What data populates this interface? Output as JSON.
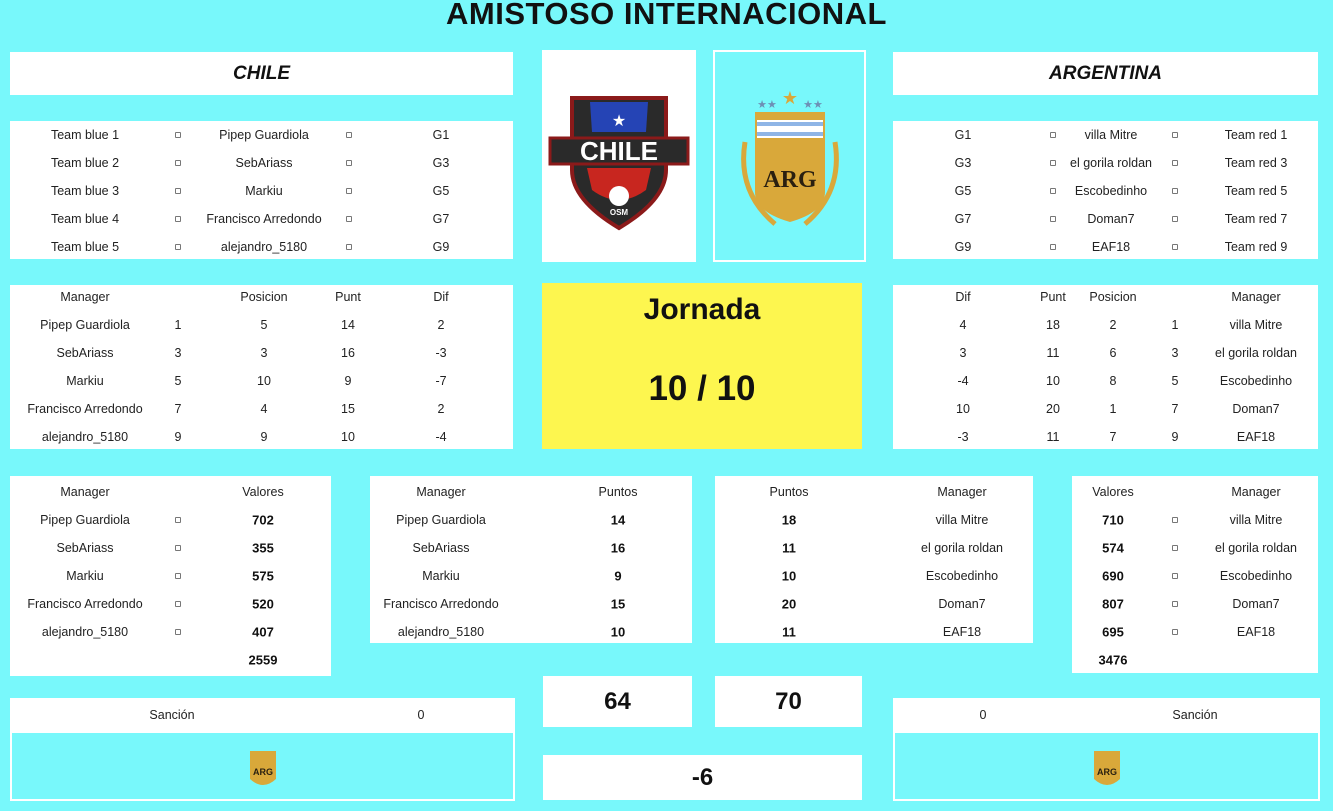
{
  "title": "AMISTOSO INTERNACIONAL",
  "home": {
    "name": "CHILE",
    "logo_text": "CHILE",
    "logo_sub": "OSM"
  },
  "away": {
    "name": "ARGENTINA",
    "logo_text": "ARG"
  },
  "colors": {
    "background": "#78f8fb",
    "jornada": "#fdf64f",
    "panel": "#ffffff"
  },
  "tables": {
    "home_matchups": {
      "rows": [
        [
          "Team blue 1",
          "□",
          "Pipep Guardiola",
          "□",
          "G1"
        ],
        [
          "Team blue 2",
          "□",
          "SebAriass",
          "□",
          "G3"
        ],
        [
          "Team blue 3",
          "□",
          "Markiu",
          "□",
          "G5"
        ],
        [
          "Team blue 4",
          "□",
          "Francisco Arredondo",
          "□",
          "G7"
        ],
        [
          "Team blue 5",
          "□",
          "alejandro_5180",
          "□",
          "G9"
        ]
      ]
    },
    "away_matchups": {
      "rows": [
        [
          "G1",
          "□",
          "villa Mitre",
          "□",
          "Team red 1"
        ],
        [
          "G3",
          "□",
          "el gorila roldan",
          "□",
          "Team red 3"
        ],
        [
          "G5",
          "□",
          "Escobedinho",
          "□",
          "Team red 5"
        ],
        [
          "G7",
          "□",
          "Doman7",
          "□",
          "Team red 7"
        ],
        [
          "G9",
          "□",
          "EAF18",
          "□",
          "Team red 9"
        ]
      ]
    },
    "home_standings": {
      "headers": [
        "Manager",
        "",
        "Posicion",
        "Punt",
        "Dif"
      ],
      "rows": [
        [
          "Pipep Guardiola",
          "1",
          "5",
          "14",
          "2"
        ],
        [
          "SebAriass",
          "3",
          "3",
          "16",
          "-3"
        ],
        [
          "Markiu",
          "5",
          "10",
          "9",
          "-7"
        ],
        [
          "Francisco Arredondo",
          "7",
          "4",
          "15",
          "2"
        ],
        [
          "alejandro_5180",
          "9",
          "9",
          "10",
          "-4"
        ]
      ]
    },
    "away_standings": {
      "headers": [
        "Dif",
        "Punt",
        "Posicion",
        "",
        "Manager"
      ],
      "rows": [
        [
          "4",
          "18",
          "2",
          "1",
          "villa Mitre"
        ],
        [
          "3",
          "11",
          "6",
          "3",
          "el gorila roldan"
        ],
        [
          "-4",
          "10",
          "8",
          "5",
          "Escobedinho"
        ],
        [
          "10",
          "20",
          "1",
          "7",
          "Doman7"
        ],
        [
          "-3",
          "11",
          "7",
          "9",
          "EAF18"
        ]
      ]
    },
    "home_values": {
      "headers": [
        "Manager",
        "",
        "Valores"
      ],
      "rows": [
        [
          "Pipep Guardiola",
          "□",
          "702"
        ],
        [
          "SebAriass",
          "□",
          "355"
        ],
        [
          "Markiu",
          "□",
          "575"
        ],
        [
          "Francisco Arredondo",
          "□",
          "520"
        ],
        [
          "alejandro_5180",
          "□",
          "407"
        ]
      ],
      "total": "2559"
    },
    "home_points": {
      "headers": [
        "Manager",
        "Puntos"
      ],
      "rows": [
        [
          "Pipep Guardiola",
          "14"
        ],
        [
          "SebAriass",
          "16"
        ],
        [
          "Markiu",
          "9"
        ],
        [
          "Francisco Arredondo",
          "15"
        ],
        [
          "alejandro_5180",
          "10"
        ]
      ]
    },
    "away_points": {
      "headers": [
        "Puntos",
        "Manager"
      ],
      "rows": [
        [
          "18",
          "villa Mitre"
        ],
        [
          "11",
          "el gorila roldan"
        ],
        [
          "10",
          "Escobedinho"
        ],
        [
          "20",
          "Doman7"
        ],
        [
          "11",
          "EAF18"
        ]
      ]
    },
    "away_values": {
      "headers": [
        "Valores",
        "",
        "Manager"
      ],
      "rows": [
        [
          "710",
          "□",
          "villa Mitre"
        ],
        [
          "574",
          "□",
          "el gorila roldan"
        ],
        [
          "690",
          "□",
          "Escobedinho"
        ],
        [
          "807",
          "□",
          "Doman7"
        ],
        [
          "695",
          "□",
          "EAF18"
        ]
      ],
      "total": "3476"
    }
  },
  "jornada": {
    "label": "Jornada",
    "value": "10 / 10"
  },
  "totals": {
    "home": "64",
    "away": "70",
    "difference": "-6"
  },
  "sanction": {
    "label": "Sanción",
    "home_value": "0",
    "away_value": "0"
  }
}
